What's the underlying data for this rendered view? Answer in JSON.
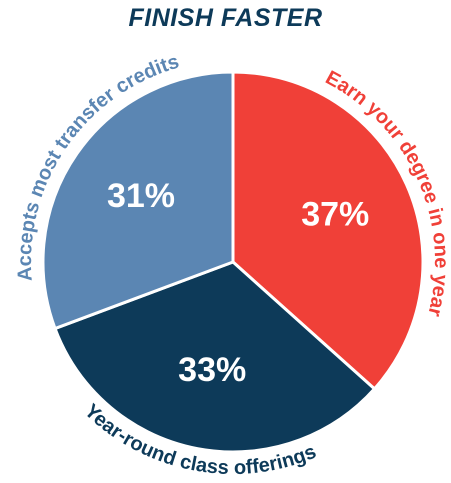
{
  "chart_data": {
    "type": "pie",
    "title": "FINISH FASTER",
    "slices": [
      {
        "label": "Earn your degree in one year",
        "value": 37,
        "value_label": "37%",
        "color": "#f04038",
        "label_color": "#f04038"
      },
      {
        "label": "Year-round class offerings",
        "value": 33,
        "value_label": "33%",
        "color": "#0d3a59",
        "label_color": "#0d3a59"
      },
      {
        "label": "Accepts most transfer credits",
        "value": 31,
        "value_label": "31%",
        "color": "#5b86b3",
        "label_color": "#5b86b3"
      }
    ],
    "start": "12 o'clock",
    "direction": "clockwise",
    "legend": "none",
    "grid": false
  }
}
